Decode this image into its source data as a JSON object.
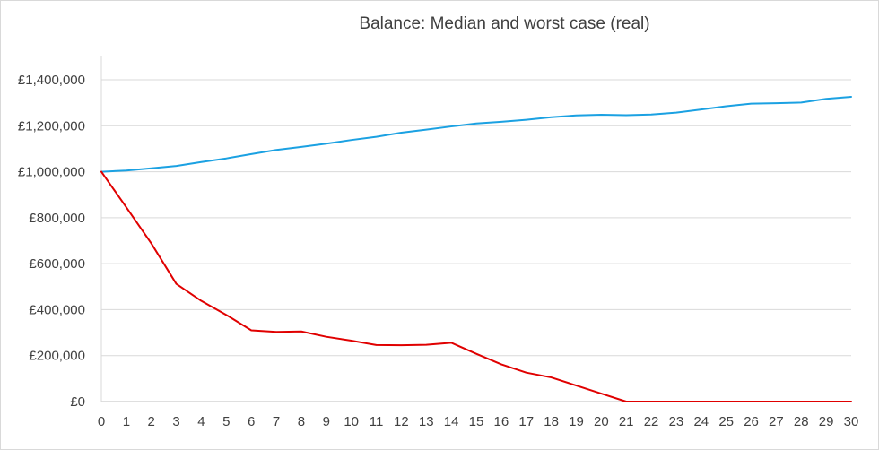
{
  "chart_data": {
    "type": "line",
    "title": "Balance: Median and worst case (real)",
    "xlabel": "",
    "ylabel": "",
    "x": [
      0,
      1,
      2,
      3,
      4,
      5,
      6,
      7,
      8,
      9,
      10,
      11,
      12,
      13,
      14,
      15,
      16,
      17,
      18,
      19,
      20,
      21,
      22,
      23,
      24,
      25,
      26,
      27,
      28,
      29,
      30
    ],
    "ylim": [
      0,
      1400000
    ],
    "yticks": [
      0,
      200000,
      400000,
      600000,
      800000,
      1000000,
      1200000,
      1400000
    ],
    "ytick_labels": [
      "£0",
      "£200,000",
      "£400,000",
      "£600,000",
      "£800,000",
      "£1,000,000",
      "£1,200,000",
      "£1,400,000"
    ],
    "grid": true,
    "legend": "none",
    "series": [
      {
        "color": "#1ba1e2",
        "values": [
          1000000,
          1005000,
          1015000,
          1025000,
          1042000,
          1058000,
          1077000,
          1095000,
          1108000,
          1122000,
          1138000,
          1152000,
          1170000,
          1183000,
          1197000,
          1210000,
          1217000,
          1226000,
          1237000,
          1245000,
          1248000,
          1246000,
          1249000,
          1257000,
          1271000,
          1285000,
          1296000,
          1298000,
          1301000,
          1317000,
          1326000
        ]
      },
      {
        "color": "#e00000",
        "values": [
          1000000,
          845000,
          688000,
          512000,
          438000,
          377000,
          310000,
          303000,
          305000,
          282000,
          265000,
          246000,
          245000,
          247000,
          256000,
          208000,
          162000,
          126000,
          105000,
          70000,
          35000,
          0,
          0,
          0,
          0,
          0,
          0,
          0,
          0,
          0,
          0
        ]
      }
    ]
  }
}
